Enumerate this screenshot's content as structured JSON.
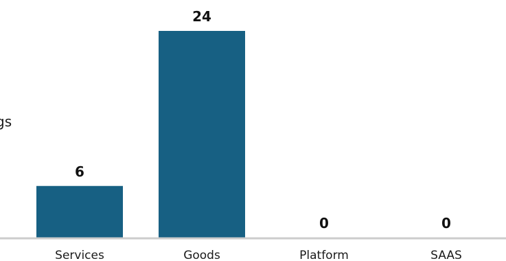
{
  "chart_data": {
    "type": "bar",
    "categories": [
      "Services",
      "Goods",
      "Platform",
      "SAAS"
    ],
    "values": [
      6,
      24,
      0,
      0
    ],
    "ylabel": "gs",
    "ylim": [
      0,
      24
    ],
    "grid": false,
    "colors": {
      "bar": "#176083",
      "baseline": "#cccccc"
    }
  }
}
